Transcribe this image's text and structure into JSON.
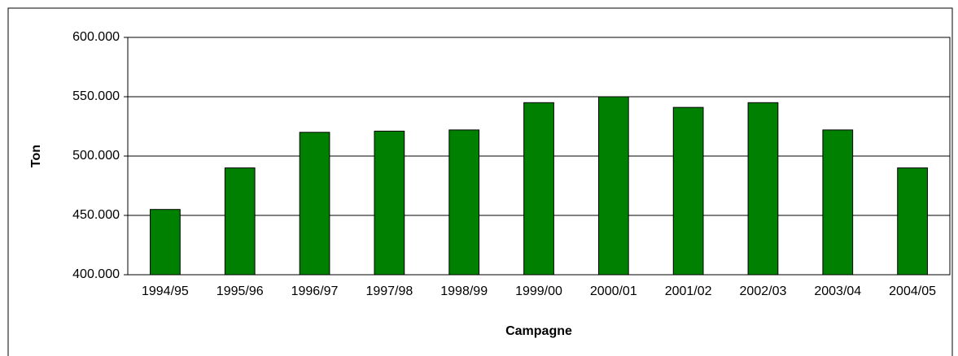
{
  "chart_data": {
    "type": "bar",
    "categories": [
      "1994/95",
      "1995/96",
      "1996/97",
      "1997/98",
      "1998/99",
      "1999/00",
      "2000/01",
      "2001/02",
      "2002/03",
      "2003/04",
      "2004/05"
    ],
    "values": [
      455000,
      490000,
      520000,
      521000,
      522000,
      545000,
      550000,
      541000,
      545000,
      522000,
      490000
    ],
    "color": "#008000",
    "xlabel": "Campagne",
    "ylabel": "Ton",
    "ylim": [
      400000,
      600000
    ],
    "yticks": [
      {
        "value": 400000,
        "label": "400.000"
      },
      {
        "value": 450000,
        "label": "450.000"
      },
      {
        "value": 500000,
        "label": "500.000"
      },
      {
        "value": 550000,
        "label": "550.000"
      },
      {
        "value": 600000,
        "label": "600.000"
      }
    ],
    "grid": true
  }
}
